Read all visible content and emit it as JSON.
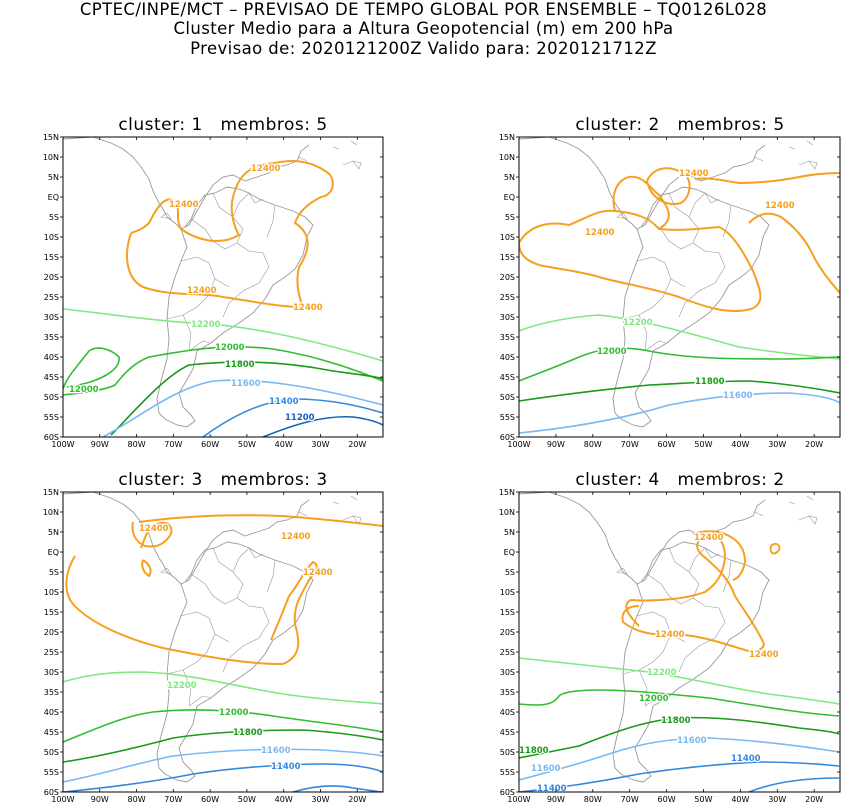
{
  "header": {
    "line1": "CPTEC/INPE/MCT – PREVISAO DE TEMPO GLOBAL POR ENSEMBLE – TQ0126L028",
    "line2": "Cluster Medio para a Altura Geopotencial (m) em 200 hPa",
    "line3": "Previsao de: 2020121200Z    Valido para: 2020121712Z"
  },
  "colors": {
    "c12400": "#f5a020",
    "c12200": "#7fe880",
    "c12000": "#33bb33",
    "c11800": "#1a991a",
    "c11600": "#7ab8f0",
    "c11400": "#3388dd",
    "c11200": "#1660c0",
    "coast": "#999999"
  },
  "axes": {
    "lat_ticks": [
      "15N",
      "10N",
      "5N",
      "EQ",
      "5S",
      "10S",
      "15S",
      "20S",
      "25S",
      "30S",
      "35S",
      "40S",
      "45S",
      "50S",
      "55S",
      "60S"
    ],
    "lon_ticks": [
      "100W",
      "90W",
      "80W",
      "70W",
      "60W",
      "50W",
      "40W",
      "30W",
      "20W"
    ]
  },
  "panels": [
    {
      "title": "cluster: 1   membros: 5",
      "contours": [
        {
          "level": "12400",
          "labels": [
            "12400",
            "12400",
            "12400",
            "12400"
          ]
        },
        {
          "level": "12200",
          "labels": [
            "12200"
          ]
        },
        {
          "level": "12000",
          "labels": [
            "12000",
            "12000"
          ]
        },
        {
          "level": "11800",
          "labels": [
            "11800"
          ]
        },
        {
          "level": "11600",
          "labels": [
            "11600"
          ]
        },
        {
          "level": "11400",
          "labels": [
            "11400"
          ]
        },
        {
          "level": "11200",
          "labels": [
            "11200"
          ]
        }
      ]
    },
    {
      "title": "cluster: 2   membros: 5",
      "contours": [
        {
          "level": "12400",
          "labels": [
            "12400",
            "12400",
            "12400"
          ]
        },
        {
          "level": "12200",
          "labels": [
            "12200"
          ]
        },
        {
          "level": "12000",
          "labels": [
            "12000"
          ]
        },
        {
          "level": "11800",
          "labels": [
            "11800"
          ]
        },
        {
          "level": "11600",
          "labels": [
            "11600"
          ]
        }
      ]
    },
    {
      "title": "cluster: 3   membros: 3",
      "contours": [
        {
          "level": "12400",
          "labels": [
            "12400",
            "12400",
            "12400"
          ]
        },
        {
          "level": "12200",
          "labels": [
            "12200"
          ]
        },
        {
          "level": "12000",
          "labels": [
            "12000"
          ]
        },
        {
          "level": "11800",
          "labels": [
            "11800"
          ]
        },
        {
          "level": "11600",
          "labels": [
            "11600"
          ]
        },
        {
          "level": "11400",
          "labels": [
            "11400"
          ]
        }
      ]
    },
    {
      "title": "cluster: 4   membros: 2",
      "contours": [
        {
          "level": "12400",
          "labels": [
            "12400",
            "12400",
            "12400"
          ]
        },
        {
          "level": "12200",
          "labels": [
            "12200"
          ]
        },
        {
          "level": "12000",
          "labels": [
            "12000"
          ]
        },
        {
          "level": "11800",
          "labels": [
            "11800",
            "11800"
          ]
        },
        {
          "level": "11600",
          "labels": [
            "11600",
            "11600"
          ]
        },
        {
          "level": "11400",
          "labels": [
            "11400",
            "11400"
          ]
        }
      ]
    }
  ]
}
